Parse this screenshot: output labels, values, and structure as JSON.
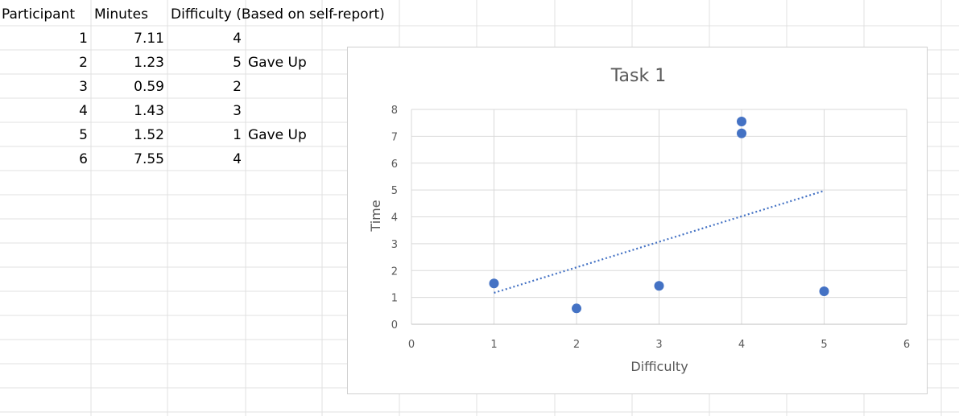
{
  "sheet": {
    "headers": [
      "Participant",
      "Minutes",
      "Difficulty (Based on self-report)"
    ],
    "rows": [
      {
        "participant": "1",
        "minutes": "7.11",
        "difficulty": "4",
        "note": ""
      },
      {
        "participant": "2",
        "minutes": "1.23",
        "difficulty": "5",
        "note": "Gave Up"
      },
      {
        "participant": "3",
        "minutes": "0.59",
        "difficulty": "2",
        "note": ""
      },
      {
        "participant": "4",
        "minutes": "1.43",
        "difficulty": "3",
        "note": ""
      },
      {
        "participant": "5",
        "minutes": "1.52",
        "difficulty": "1",
        "note": "Gave Up"
      },
      {
        "participant": "6",
        "minutes": "7.55",
        "difficulty": "4",
        "note": ""
      }
    ]
  },
  "chart_data": {
    "type": "scatter",
    "title": "Task 1",
    "xlabel": "Difficulty",
    "ylabel": "Time",
    "xlim": [
      0,
      6
    ],
    "ylim": [
      0,
      8
    ],
    "xticks": [
      "0",
      "1",
      "2",
      "3",
      "4",
      "5",
      "6"
    ],
    "yticks": [
      "0",
      "1",
      "2",
      "3",
      "4",
      "5",
      "6",
      "7",
      "8"
    ],
    "grid": true,
    "legend": "none",
    "series": [
      {
        "points": [
          {
            "x": 4,
            "y": 7.11
          },
          {
            "x": 5,
            "y": 1.23
          },
          {
            "x": 2,
            "y": 0.59
          },
          {
            "x": 3,
            "y": 1.43
          },
          {
            "x": 1,
            "y": 1.52
          },
          {
            "x": 4,
            "y": 7.55
          }
        ],
        "color": "#4472c4"
      }
    ],
    "trendline": {
      "type": "linear",
      "style": "dotted",
      "x_from": 1,
      "x_to": 5,
      "y_from": 1.17,
      "y_to": 4.97,
      "color": "#4472c4"
    }
  }
}
